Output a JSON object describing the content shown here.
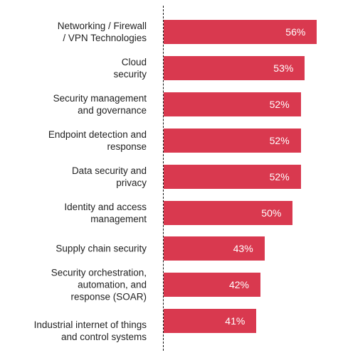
{
  "chart_data": {
    "type": "bar",
    "orientation": "horizontal",
    "categories": [
      "Networking / Firewall\n/ VPN Technologies",
      "Cloud\nsecurity",
      "Security management\nand governance",
      "Endpoint detection and\nresponse",
      "Data security and\nprivacy",
      "Identity and access\nmanagement",
      "Supply chain security",
      "Security orchestration,\nautomation, and\nresponse (SOAR)",
      "Industrial internet of things\nand control systems"
    ],
    "values": [
      56,
      53,
      52,
      52,
      52,
      50,
      43,
      42,
      41
    ],
    "value_labels": [
      "56%",
      "53%",
      "52%",
      "52%",
      "52%",
      "50%",
      "43%",
      "42%",
      "41%"
    ],
    "color": "#d9394f",
    "xlim": [
      18,
      60
    ]
  }
}
